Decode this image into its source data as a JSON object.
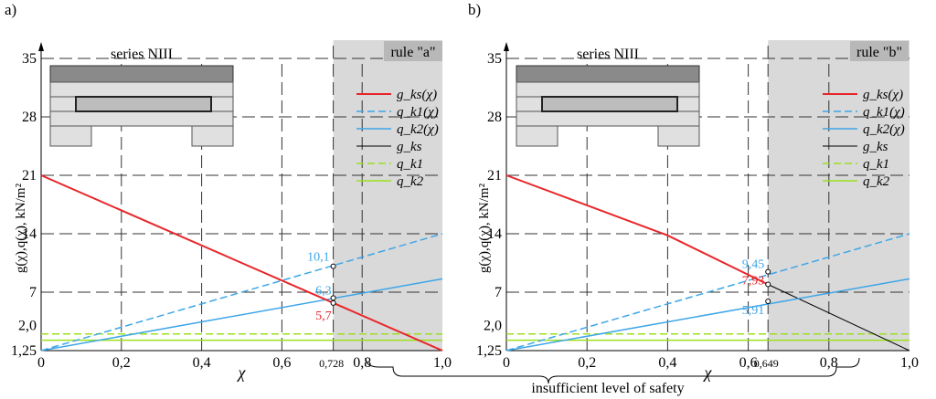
{
  "panels": [
    {
      "panel_label": "a)",
      "series_label": "series NIII",
      "rule_label": "rule \"a\"",
      "ylabel": "g(χ),q(χ), kN/m²",
      "xlabel": "χ"
    },
    {
      "panel_label": "b)",
      "series_label": "series NIII",
      "rule_label": "rule \"b\"",
      "ylabel": "g(χ),q(χ), kN/m²",
      "xlabel": "χ"
    }
  ],
  "bottom_note": "insufficient level of safety",
  "colors": {
    "gks_curve": "#e8262a",
    "qk1_curve": "#3ea6e8",
    "qk2_curve": "#3ea6e8",
    "gks_line": "#000000",
    "qk1_line": "#9be01e",
    "qk2_line": "#9be01e",
    "shade": "#d9d9d9"
  },
  "chart_data": [
    {
      "type": "line",
      "panel": "a)",
      "xlim": [
        0,
        1.0
      ],
      "ylim": [
        0,
        35
      ],
      "x_ticks": [
        "0",
        "0,2",
        "0,4",
        "0,6",
        "0,728",
        "0,8",
        "1,0"
      ],
      "y_ticks": [
        "1,25",
        "2,0",
        "7",
        "14",
        "21",
        "28",
        "35"
      ],
      "shaded_region_x": [
        0.728,
        1.0
      ],
      "series": [
        {
          "name": "g_ks(χ)",
          "x": [
            0,
            1.0
          ],
          "y": [
            21,
            0
          ]
        },
        {
          "name": "q_k1(χ)",
          "x": [
            0,
            1.0
          ],
          "y": [
            0,
            14
          ]
        },
        {
          "name": "q_k2(χ)",
          "x": [
            0,
            1.0
          ],
          "y": [
            0,
            8.6
          ]
        },
        {
          "name": "g_ks",
          "x": [],
          "y": []
        },
        {
          "name": "q_k1",
          "x": [
            0,
            1.0
          ],
          "y": [
            2.0,
            2.0
          ]
        },
        {
          "name": "q_k2",
          "x": [
            0,
            1.0
          ],
          "y": [
            1.25,
            1.25
          ]
        }
      ],
      "annotations": [
        {
          "text": "10,1",
          "x": 0.728,
          "y": 10.1
        },
        {
          "text": "6,3",
          "x": 0.728,
          "y": 6.3
        },
        {
          "text": "5,7",
          "x": 0.728,
          "y": 5.7
        }
      ]
    },
    {
      "type": "line",
      "panel": "b)",
      "xlim": [
        0,
        1.0
      ],
      "ylim": [
        0,
        35
      ],
      "x_ticks": [
        "0",
        "0,2",
        "0,4",
        "0,6",
        "0,649",
        "0,8",
        "1,0"
      ],
      "y_ticks": [
        "1,25",
        "2,0",
        "7",
        "14",
        "21",
        "28",
        "35"
      ],
      "shaded_region_x": [
        0.649,
        1.0
      ],
      "series": [
        {
          "name": "g_ks(χ)",
          "x": [
            0,
            0.4,
            0.649
          ],
          "y": [
            21,
            13.8,
            7.93
          ]
        },
        {
          "name": "q_k1(χ)",
          "x": [
            0,
            1.0
          ],
          "y": [
            0,
            14
          ]
        },
        {
          "name": "q_k2(χ)",
          "x": [
            0,
            1.0
          ],
          "y": [
            0,
            8.6
          ]
        },
        {
          "name": "g_ks",
          "x": [
            0.649,
            1.0
          ],
          "y": [
            7.93,
            0
          ]
        },
        {
          "name": "q_k1",
          "x": [
            0,
            1.0
          ],
          "y": [
            2.0,
            2.0
          ]
        },
        {
          "name": "q_k2",
          "x": [
            0,
            1.0
          ],
          "y": [
            1.25,
            1.25
          ]
        }
      ],
      "annotations": [
        {
          "text": "9,45",
          "x": 0.649,
          "y": 9.45
        },
        {
          "text": "7,93",
          "x": 0.649,
          "y": 7.93
        },
        {
          "text": "5,91",
          "x": 0.649,
          "y": 5.91
        }
      ]
    }
  ]
}
